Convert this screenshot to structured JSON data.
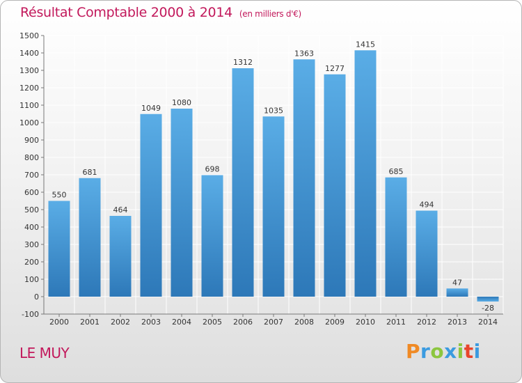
{
  "header": {
    "title": "Résultat Comptable 2000 à 2014",
    "subtitle": "(en milliers d'€)"
  },
  "location": "LE MUY",
  "brand": {
    "letters": [
      "P",
      "r",
      "o",
      "x",
      "i",
      "t",
      "i"
    ]
  },
  "colors": {
    "bar_light": "#5aade6",
    "bar_dark": "#2d78b8",
    "title": "#c2185b",
    "grid": "#ffffff"
  },
  "chart_data": {
    "type": "bar",
    "title": "Résultat Comptable 2000 à 2014",
    "subtitle": "(en milliers d'€)",
    "categories": [
      "2000",
      "2001",
      "2002",
      "2003",
      "2004",
      "2005",
      "2006",
      "2007",
      "2008",
      "2009",
      "2010",
      "2011",
      "2012",
      "2013",
      "2014"
    ],
    "values": [
      550,
      681,
      464,
      1049,
      1080,
      698,
      1312,
      1035,
      1363,
      1277,
      1415,
      685,
      494,
      47,
      -28
    ],
    "ylim": [
      -100,
      1500
    ],
    "yticks": [
      -100,
      0,
      100,
      200,
      300,
      400,
      500,
      600,
      700,
      800,
      900,
      1000,
      1100,
      1200,
      1300,
      1400,
      1500
    ],
    "xlabel": "",
    "ylabel": "",
    "grid": true,
    "legend": "none"
  }
}
